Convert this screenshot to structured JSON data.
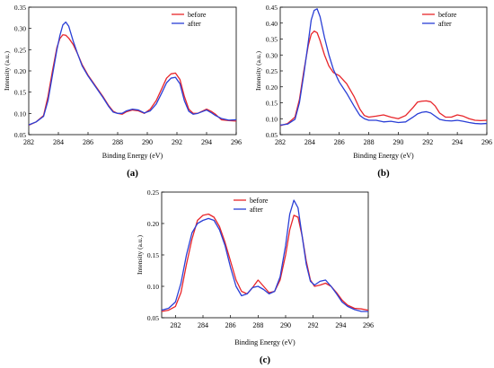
{
  "chart_data": [
    {
      "type": "line",
      "panel_label": "(a)",
      "xlabel": "Binding Energy (eV)",
      "ylabel": "Intensity (a.u.)",
      "xlim": [
        282,
        296
      ],
      "ylim": [
        0.05,
        0.35
      ],
      "xticks": [
        282,
        284,
        286,
        288,
        290,
        292,
        294,
        296
      ],
      "yticks": [
        0.05,
        0.1,
        0.15,
        0.2,
        0.25,
        0.3,
        0.35
      ],
      "ytick_labels": [
        "0.05",
        "0.10",
        "0.15",
        "0.20",
        "0.25",
        "0.30",
        "0.35"
      ],
      "legend_position": "top-right",
      "grid": false,
      "series": [
        {
          "name": "before",
          "color": "#e8252a",
          "x": [
            282,
            282.5,
            283,
            283.3,
            283.6,
            283.9,
            284.1,
            284.3,
            284.5,
            284.7,
            285,
            285.3,
            285.6,
            286,
            286.5,
            287,
            287.4,
            287.7,
            288,
            288.3,
            288.6,
            289,
            289.4,
            289.8,
            290.2,
            290.6,
            291,
            291.3,
            291.6,
            291.9,
            292.2,
            292.5,
            292.8,
            293.1,
            293.4,
            293.7,
            294,
            294.3,
            294.6,
            295,
            295.5,
            296
          ],
          "y": [
            0.072,
            0.08,
            0.095,
            0.14,
            0.2,
            0.255,
            0.276,
            0.285,
            0.284,
            0.277,
            0.262,
            0.24,
            0.215,
            0.19,
            0.165,
            0.14,
            0.118,
            0.105,
            0.1,
            0.098,
            0.104,
            0.108,
            0.106,
            0.1,
            0.11,
            0.13,
            0.16,
            0.183,
            0.193,
            0.195,
            0.18,
            0.14,
            0.11,
            0.1,
            0.1,
            0.105,
            0.11,
            0.105,
            0.098,
            0.085,
            0.083,
            0.082
          ]
        },
        {
          "name": "after",
          "color": "#2a3fd6",
          "x": [
            282,
            282.5,
            283,
            283.3,
            283.6,
            283.9,
            284.1,
            284.3,
            284.5,
            284.7,
            285,
            285.3,
            285.6,
            286,
            286.5,
            287,
            287.4,
            287.7,
            288,
            288.3,
            288.6,
            289,
            289.4,
            289.8,
            290.2,
            290.6,
            291,
            291.3,
            291.6,
            291.9,
            292.2,
            292.5,
            292.8,
            293.1,
            293.4,
            293.7,
            294,
            294.3,
            294.6,
            295,
            295.5,
            296
          ],
          "y": [
            0.073,
            0.08,
            0.093,
            0.13,
            0.19,
            0.25,
            0.283,
            0.308,
            0.315,
            0.305,
            0.27,
            0.24,
            0.212,
            0.188,
            0.163,
            0.138,
            0.116,
            0.103,
            0.1,
            0.1,
            0.106,
            0.11,
            0.108,
            0.101,
            0.106,
            0.122,
            0.15,
            0.172,
            0.183,
            0.185,
            0.17,
            0.13,
            0.105,
            0.098,
            0.1,
            0.104,
            0.108,
            0.102,
            0.095,
            0.088,
            0.084,
            0.085
          ]
        }
      ]
    },
    {
      "type": "line",
      "panel_label": "(b)",
      "xlabel": "Binding Energy (eV)",
      "ylabel": "Intensity (a.u.)",
      "xlim": [
        282,
        296
      ],
      "ylim": [
        0.05,
        0.45
      ],
      "xticks": [
        282,
        284,
        286,
        288,
        290,
        292,
        294,
        296
      ],
      "yticks": [
        0.05,
        0.1,
        0.15,
        0.2,
        0.25,
        0.3,
        0.35,
        0.4,
        0.45
      ],
      "ytick_labels": [
        "0.05",
        "0.10",
        "0.15",
        "0.20",
        "0.25",
        "0.30",
        "0.35",
        "0.40",
        "0.45"
      ],
      "legend_position": "top-right",
      "grid": false,
      "series": [
        {
          "name": "before",
          "color": "#e8252a",
          "x": [
            282,
            282.5,
            283,
            283.3,
            283.6,
            283.9,
            284.1,
            284.3,
            284.5,
            284.7,
            285,
            285.3,
            285.6,
            286,
            286.5,
            287,
            287.4,
            287.7,
            288,
            288.5,
            289,
            289.5,
            290,
            290.5,
            291,
            291.3,
            291.6,
            291.9,
            292.2,
            292.5,
            292.8,
            293.2,
            293.6,
            294,
            294.4,
            294.8,
            295.2,
            295.6,
            296
          ],
          "y": [
            0.078,
            0.085,
            0.105,
            0.16,
            0.25,
            0.33,
            0.365,
            0.375,
            0.37,
            0.345,
            0.3,
            0.265,
            0.245,
            0.235,
            0.21,
            0.17,
            0.13,
            0.11,
            0.105,
            0.108,
            0.112,
            0.105,
            0.1,
            0.11,
            0.135,
            0.152,
            0.155,
            0.156,
            0.153,
            0.14,
            0.118,
            0.105,
            0.105,
            0.112,
            0.108,
            0.1,
            0.095,
            0.094,
            0.095
          ]
        },
        {
          "name": "after",
          "color": "#2a3fd6",
          "x": [
            282,
            282.5,
            283,
            283.3,
            283.6,
            283.9,
            284.1,
            284.3,
            284.5,
            284.7,
            285,
            285.3,
            285.6,
            286,
            286.5,
            287,
            287.4,
            287.7,
            288,
            288.5,
            289,
            289.5,
            290,
            290.5,
            291,
            291.3,
            291.6,
            291.9,
            292.2,
            292.5,
            292.8,
            293.2,
            293.6,
            294,
            294.4,
            294.8,
            295.2,
            295.6,
            296
          ],
          "y": [
            0.08,
            0.083,
            0.098,
            0.15,
            0.24,
            0.34,
            0.41,
            0.44,
            0.445,
            0.42,
            0.355,
            0.3,
            0.255,
            0.215,
            0.18,
            0.14,
            0.11,
            0.1,
            0.095,
            0.095,
            0.09,
            0.092,
            0.088,
            0.09,
            0.105,
            0.115,
            0.12,
            0.122,
            0.118,
            0.108,
            0.098,
            0.094,
            0.093,
            0.095,
            0.092,
            0.088,
            0.085,
            0.084,
            0.085
          ]
        }
      ]
    },
    {
      "type": "line",
      "panel_label": "(c)",
      "xlabel": "Binding Energy (eV)",
      "ylabel": "Intensity (a.u.)",
      "xlim": [
        281,
        296
      ],
      "ylim": [
        0.05,
        0.25
      ],
      "xticks": [
        282,
        284,
        286,
        288,
        290,
        292,
        294,
        296
      ],
      "yticks": [
        0.05,
        0.1,
        0.15,
        0.2,
        0.25
      ],
      "ytick_labels": [
        "0.05",
        "0.10",
        "0.15",
        "0.20",
        "0.25"
      ],
      "legend_position": "top-left",
      "grid": false,
      "series": [
        {
          "name": "before",
          "color": "#e8252a",
          "x": [
            281,
            281.5,
            282,
            282.4,
            282.8,
            283.2,
            283.6,
            284,
            284.4,
            284.8,
            285.2,
            285.6,
            286,
            286.4,
            286.8,
            287.2,
            287.6,
            288,
            288.4,
            288.8,
            289.2,
            289.6,
            290,
            290.3,
            290.6,
            290.9,
            291.2,
            291.5,
            291.8,
            292.1,
            292.5,
            292.9,
            293.3,
            293.7,
            294.1,
            294.5,
            295,
            295.5,
            296
          ],
          "y": [
            0.06,
            0.062,
            0.068,
            0.09,
            0.135,
            0.175,
            0.205,
            0.213,
            0.215,
            0.21,
            0.195,
            0.17,
            0.14,
            0.11,
            0.092,
            0.088,
            0.098,
            0.11,
            0.1,
            0.09,
            0.092,
            0.11,
            0.15,
            0.19,
            0.213,
            0.21,
            0.18,
            0.14,
            0.11,
            0.1,
            0.102,
            0.105,
            0.1,
            0.09,
            0.078,
            0.07,
            0.065,
            0.064,
            0.062
          ]
        },
        {
          "name": "after",
          "color": "#2a3fd6",
          "x": [
            281,
            281.5,
            282,
            282.4,
            282.8,
            283.2,
            283.6,
            284,
            284.4,
            284.8,
            285.2,
            285.6,
            286,
            286.4,
            286.8,
            287.2,
            287.6,
            288,
            288.4,
            288.8,
            289.2,
            289.6,
            290,
            290.3,
            290.6,
            290.9,
            291.2,
            291.5,
            291.8,
            292.1,
            292.5,
            292.9,
            293.3,
            293.7,
            294.1,
            294.5,
            295,
            295.5,
            296
          ],
          "y": [
            0.062,
            0.065,
            0.075,
            0.105,
            0.15,
            0.185,
            0.2,
            0.205,
            0.208,
            0.205,
            0.19,
            0.165,
            0.13,
            0.1,
            0.085,
            0.088,
            0.098,
            0.1,
            0.095,
            0.088,
            0.092,
            0.115,
            0.165,
            0.215,
            0.237,
            0.225,
            0.18,
            0.135,
            0.108,
            0.102,
            0.108,
            0.11,
            0.1,
            0.088,
            0.075,
            0.068,
            0.063,
            0.06,
            0.06
          ]
        }
      ]
    }
  ]
}
